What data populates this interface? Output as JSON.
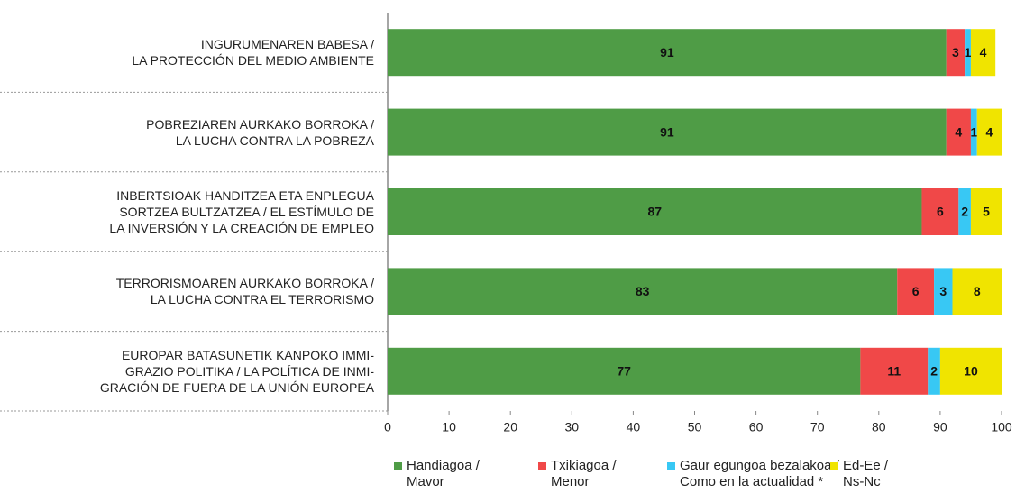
{
  "chart_data": {
    "type": "stacked-bar-horizontal",
    "categories": [
      "INGURUMENAREN BABESA /\nLA PROTECCIÓN DEL MEDIO AMBIENTE",
      "POBREZIAREN AURKAKO BORROKA /\nLA LUCHA CONTRA LA POBREZA",
      "INBERTSIOAK HANDITZEA ETA ENPLEGUA\nSORTZEA BULTZATZEA / EL ESTÍMULO DE\nLA INVERSIÓN Y LA CREACIÓN DE EMPLEO",
      "TERRORISMOAREN AURKAKO BORROKA /\nLA LUCHA CONTRA EL TERRORISMO",
      "EUROPAR BATASUNETIK KANPOKO IMMI-\nGRAZIO POLITIKA / LA POLÍTICA DE INMI-\nGRACIÓN DE FUERA DE LA UNIÓN EUROPEA"
    ],
    "series": [
      {
        "name": "Handiagoa /\nMavor",
        "color": "#4f9c46",
        "values": [
          91,
          91,
          87,
          83,
          77
        ]
      },
      {
        "name": "Txikiagoa /\nMenor",
        "color": "#f04848",
        "values": [
          3,
          4,
          6,
          6,
          11
        ]
      },
      {
        "name": "Gaur egungoa bezalakoa /\nComo en la actualidad *",
        "color": "#38c8f4",
        "values": [
          1,
          1,
          2,
          3,
          2
        ]
      },
      {
        "name": "Ed-Ee /\nNs-Nc",
        "color": "#f0e400",
        "values": [
          4,
          4,
          5,
          8,
          10
        ]
      }
    ],
    "xlim": [
      0,
      100
    ],
    "xticks": [
      0,
      10,
      20,
      30,
      40,
      50,
      60,
      70,
      80,
      90,
      100
    ]
  }
}
